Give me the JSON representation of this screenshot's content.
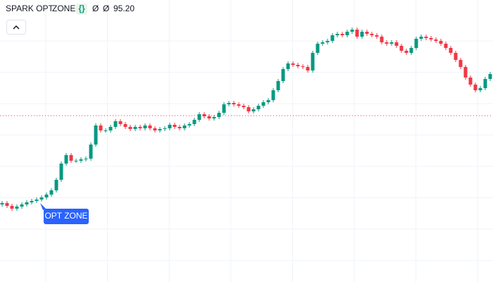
{
  "header": {
    "symbol": "SPARK OPT",
    "interval": "ZONE",
    "values": [
      "Ø",
      "Ø",
      "95.20"
    ]
  },
  "chart_data": {
    "type": "candlestick",
    "up_color": "#089981",
    "down_color": "#f23645",
    "ylim": [
      0,
      400
    ],
    "grid": true,
    "price_line": {
      "value": 236,
      "color": "#f23645"
    },
    "annotation": {
      "text": "OPT ZONE",
      "index": 8,
      "color": "#2962ff"
    },
    "open": [
      110,
      112,
      108,
      104,
      107,
      110,
      113,
      115,
      117,
      120,
      124,
      130,
      145,
      168,
      180,
      172,
      172,
      174,
      175,
      195,
      222,
      215,
      215,
      220,
      228,
      224,
      220,
      217,
      220,
      218,
      222,
      218,
      215,
      217,
      218,
      223,
      220,
      218,
      222,
      224,
      230,
      238,
      235,
      232,
      234,
      240,
      252,
      254,
      252,
      250,
      248,
      242,
      245,
      250,
      255,
      258,
      272,
      285,
      302,
      310,
      308,
      306,
      305,
      300,
      325,
      338,
      340,
      342,
      350,
      352,
      350,
      355,
      358,
      348,
      355,
      352,
      350,
      348,
      340,
      338,
      340,
      335,
      328,
      325,
      332,
      345,
      348,
      346,
      344,
      342,
      338,
      332,
      325,
      315,
      305,
      290,
      280,
      272,
      275,
      288
    ],
    "high": [
      115,
      115,
      111,
      110,
      113,
      116,
      118,
      120,
      123,
      127,
      133,
      148,
      171,
      183,
      183,
      175,
      177,
      178,
      198,
      225,
      225,
      218,
      223,
      231,
      231,
      227,
      223,
      223,
      223,
      225,
      225,
      221,
      220,
      221,
      226,
      226,
      223,
      225,
      227,
      233,
      241,
      241,
      238,
      237,
      243,
      255,
      257,
      257,
      255,
      253,
      251,
      248,
      253,
      258,
      261,
      275,
      288,
      305,
      313,
      313,
      311,
      309,
      308,
      328,
      341,
      343,
      345,
      353,
      355,
      355,
      358,
      361,
      361,
      358,
      358,
      355,
      353,
      351,
      343,
      343,
      343,
      338,
      331,
      335,
      348,
      351,
      351,
      349,
      347,
      345,
      341,
      335,
      328,
      318,
      308,
      293,
      283,
      278,
      291,
      298
    ],
    "low": [
      107,
      105,
      101,
      101,
      104,
      107,
      110,
      112,
      114,
      117,
      121,
      127,
      142,
      165,
      169,
      169,
      169,
      171,
      172,
      192,
      212,
      212,
      212,
      217,
      221,
      217,
      214,
      214,
      215,
      215,
      215,
      212,
      212,
      214,
      215,
      217,
      215,
      215,
      219,
      221,
      227,
      232,
      229,
      229,
      231,
      237,
      249,
      249,
      247,
      245,
      239,
      239,
      242,
      247,
      252,
      255,
      269,
      282,
      299,
      305,
      303,
      302,
      297,
      297,
      322,
      335,
      337,
      339,
      347,
      347,
      347,
      352,
      345,
      345,
      349,
      347,
      345,
      337,
      335,
      335,
      332,
      325,
      322,
      322,
      329,
      342,
      343,
      341,
      339,
      335,
      329,
      322,
      312,
      302,
      287,
      277,
      269,
      269,
      272,
      285
    ],
    "close": [
      112,
      108,
      104,
      107,
      110,
      113,
      115,
      117,
      120,
      124,
      130,
      145,
      168,
      180,
      172,
      172,
      174,
      175,
      195,
      222,
      215,
      215,
      220,
      228,
      224,
      220,
      217,
      220,
      218,
      222,
      218,
      215,
      217,
      218,
      223,
      220,
      218,
      222,
      224,
      230,
      238,
      235,
      232,
      234,
      240,
      252,
      254,
      252,
      250,
      248,
      242,
      245,
      250,
      255,
      258,
      272,
      285,
      302,
      310,
      308,
      306,
      305,
      300,
      325,
      338,
      340,
      342,
      350,
      352,
      350,
      355,
      358,
      348,
      355,
      352,
      350,
      348,
      340,
      338,
      340,
      335,
      328,
      325,
      332,
      345,
      348,
      346,
      344,
      342,
      338,
      332,
      325,
      315,
      305,
      290,
      280,
      272,
      275,
      288,
      295
    ]
  }
}
